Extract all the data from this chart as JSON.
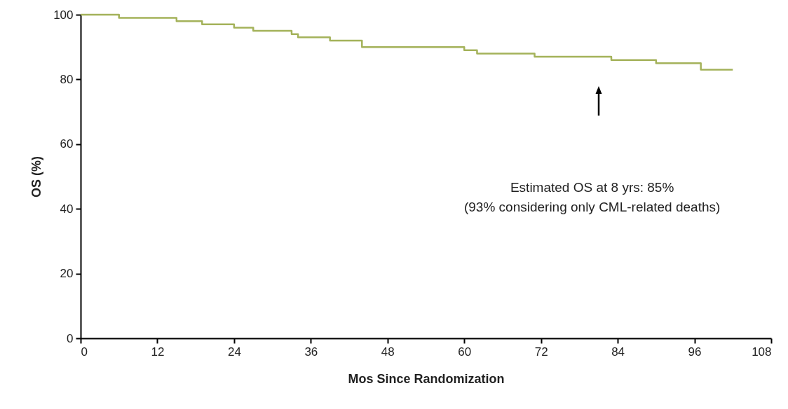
{
  "chart_data": {
    "type": "step",
    "xlabel": "Mos Since Randomization",
    "ylabel": "OS (%)",
    "x": [
      0,
      6,
      15,
      19,
      24,
      27,
      33,
      34,
      39,
      44,
      57,
      60,
      62,
      71,
      83,
      90,
      97,
      102
    ],
    "series": [
      {
        "color": "#a4b25a",
        "values": [
          100,
          99,
          98,
          97,
          96,
          95,
          94,
          93,
          92,
          90,
          90,
          89,
          88,
          87,
          86,
          85,
          83,
          83
        ]
      }
    ],
    "xlim": [
      0,
      108
    ],
    "xticks": [
      0,
      12,
      24,
      36,
      48,
      60,
      72,
      84,
      96,
      108
    ],
    "ylim": [
      0,
      100
    ],
    "yticks": [
      0,
      20,
      40,
      60,
      80,
      100
    ],
    "grid": false,
    "marker": "none",
    "line_style": "solid",
    "annotations": [
      "Estimated OS at 8 yrs: 85%",
      "(93% considering only CML-related deaths)"
    ]
  }
}
